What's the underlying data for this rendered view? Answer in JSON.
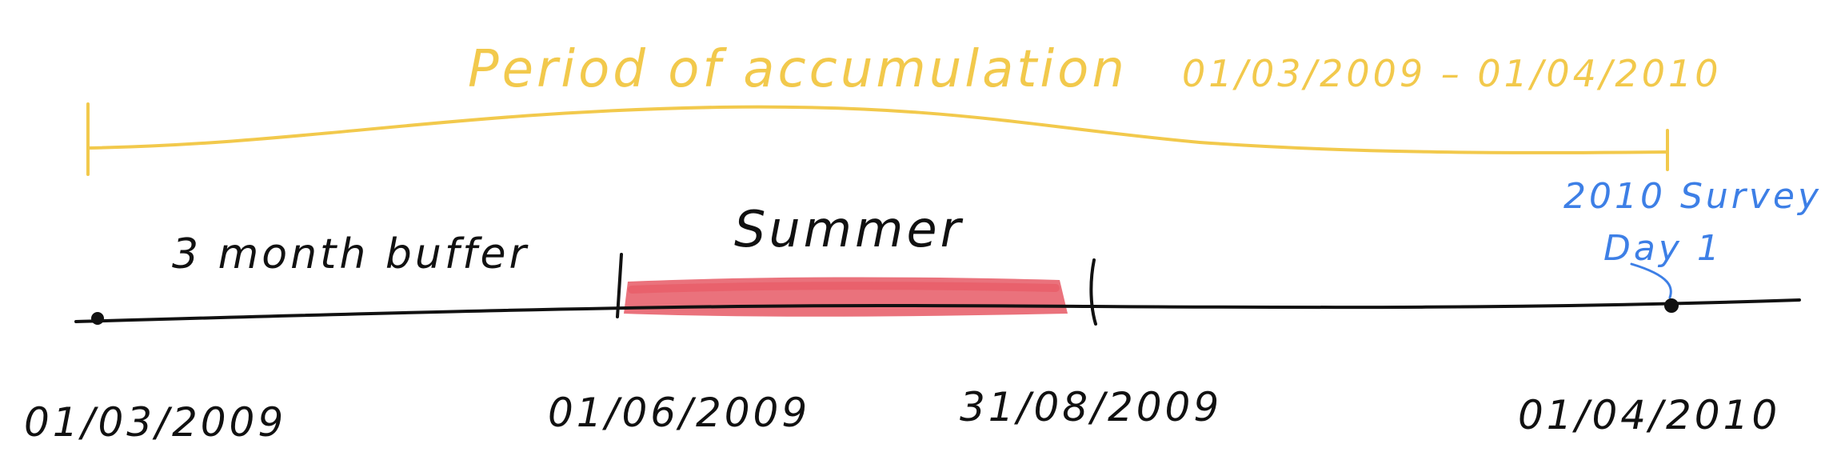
{
  "accumulation": {
    "label": "Period of accumulation",
    "range": "01/03/2009 – 01/04/2010",
    "color": "#f2c94c"
  },
  "buffer": {
    "label": "3 month buffer"
  },
  "summer": {
    "label": "Summer",
    "highlight_color": "#e23b4a"
  },
  "survey": {
    "line1": "2010 Survey",
    "line2": "Day 1",
    "color": "#3d7fe6"
  },
  "dates": {
    "start": "01/03/2009",
    "summer_start": "01/06/2009",
    "summer_end": "31/08/2009",
    "end": "01/04/2010"
  }
}
